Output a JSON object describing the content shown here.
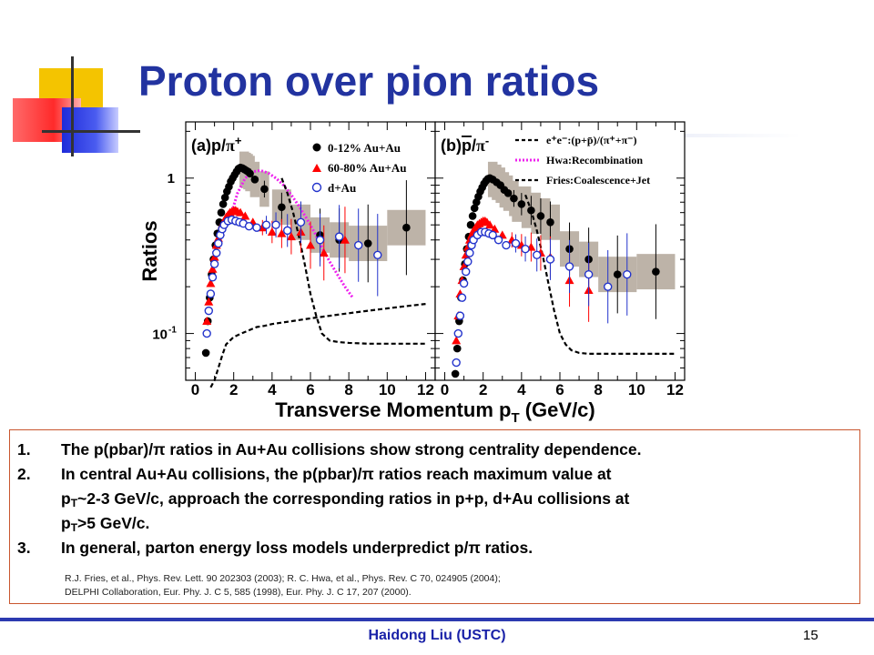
{
  "title": "Proton over pion ratios",
  "chart_data": {
    "type": "scatter",
    "xlabel": "Transverse Momentum p",
    "xlabel_sub": "T",
    "xlabel_unit": " (GeV/c)",
    "ylabel": "Ratios",
    "yscale": "log",
    "ylim": [
      0.05,
      2.3
    ],
    "xlim": [
      -0.5,
      12.5
    ],
    "x_ticks": [
      "0",
      "2",
      "4",
      "6",
      "8",
      "10",
      "12"
    ],
    "y_tick_labels": {
      "one": "1",
      "tenth_base": "10",
      "tenth_exp": "-1"
    },
    "panels": [
      {
        "label_prefix": "(a)p/",
        "label_pi": "π",
        "label_sup": "+",
        "legend": [
          "0-12% Au+Au",
          "60-80% Au+Au",
          "d+Au"
        ],
        "series": [
          {
            "name": "0-12% Au+Au",
            "color": "#000000",
            "marker": "circle-filled",
            "x": [
              0.55,
              0.65,
              0.75,
              0.85,
              0.95,
              1.05,
              1.15,
              1.25,
              1.35,
              1.45,
              1.55,
              1.65,
              1.75,
              1.85,
              1.95,
              2.05,
              2.15,
              2.25,
              2.35,
              2.45,
              2.55,
              2.65,
              2.75,
              2.85,
              3.1,
              3.6,
              4.5,
              5.5,
              6.5,
              7.5,
              9.0,
              11.0
            ],
            "y": [
              0.075,
              0.12,
              0.17,
              0.24,
              0.3,
              0.37,
              0.44,
              0.52,
              0.6,
              0.68,
              0.75,
              0.82,
              0.88,
              0.95,
              1.0,
              1.05,
              1.1,
              1.15,
              1.17,
              1.16,
              1.14,
              1.12,
              1.1,
              1.07,
              0.98,
              0.85,
              0.65,
              0.52,
              0.43,
              0.4,
              0.38,
              0.48
            ]
          },
          {
            "name": "60-80% Au+Au",
            "color": "#ff0000",
            "marker": "triangle-filled",
            "x": [
              0.6,
              0.7,
              0.8,
              0.9,
              1.0,
              1.1,
              1.2,
              1.3,
              1.4,
              1.5,
              1.6,
              1.7,
              1.8,
              1.9,
              2.0,
              2.1,
              2.2,
              2.35,
              2.6,
              3.0,
              3.5,
              4.0,
              4.5,
              5.0,
              5.5,
              6.0,
              6.7,
              7.8
            ],
            "y": [
              0.12,
              0.16,
              0.21,
              0.26,
              0.31,
              0.37,
              0.41,
              0.45,
              0.5,
              0.53,
              0.56,
              0.58,
              0.6,
              0.61,
              0.62,
              0.62,
              0.61,
              0.6,
              0.57,
              0.52,
              0.48,
              0.45,
              0.44,
              0.42,
              0.45,
              0.37,
              0.33,
              0.4
            ]
          },
          {
            "name": "d+Au",
            "color": "#2233cc",
            "marker": "circle-open",
            "x": [
              0.6,
              0.7,
              0.8,
              0.9,
              1.0,
              1.1,
              1.2,
              1.3,
              1.4,
              1.5,
              1.7,
              1.9,
              2.1,
              2.3,
              2.5,
              2.8,
              3.2,
              3.7,
              4.2,
              4.8,
              5.5,
              6.5,
              7.5,
              8.5,
              9.5
            ],
            "y": [
              0.1,
              0.14,
              0.18,
              0.23,
              0.28,
              0.33,
              0.38,
              0.43,
              0.47,
              0.5,
              0.53,
              0.54,
              0.53,
              0.52,
              0.51,
              0.49,
              0.48,
              0.5,
              0.5,
              0.46,
              0.52,
              0.4,
              0.42,
              0.37,
              0.32
            ]
          }
        ]
      },
      {
        "label_prefix": "(b)",
        "label_pbar": "p",
        "label_slash": "/",
        "label_pi": "π",
        "label_sup": "-",
        "legend": [
          "e⁺e⁻:(p+p̄)/(π⁺+π⁻)",
          "Hwa:Recombination",
          "Fries:Coalescence+Jet"
        ],
        "series": [
          {
            "name": "0-12% Au+Au",
            "color": "#000000",
            "marker": "circle-filled",
            "x": [
              0.55,
              0.65,
              0.75,
              0.85,
              0.95,
              1.05,
              1.15,
              1.25,
              1.35,
              1.45,
              1.55,
              1.65,
              1.75,
              1.85,
              1.95,
              2.05,
              2.15,
              2.25,
              2.35,
              2.5,
              2.7,
              2.9,
              3.1,
              3.3,
              3.6,
              4.0,
              4.5,
              5.0,
              5.5,
              6.5,
              7.5,
              9.0,
              11.0
            ],
            "y": [
              0.055,
              0.08,
              0.12,
              0.17,
              0.22,
              0.28,
              0.35,
              0.42,
              0.5,
              0.57,
              0.64,
              0.7,
              0.76,
              0.82,
              0.87,
              0.92,
              0.96,
              0.99,
              1.0,
              0.98,
              0.94,
              0.9,
              0.84,
              0.8,
              0.74,
              0.68,
              0.62,
              0.57,
              0.52,
              0.35,
              0.3,
              0.24,
              0.25
            ]
          },
          {
            "name": "60-80% Au+Au",
            "color": "#ff0000",
            "marker": "triangle-filled",
            "x": [
              0.6,
              0.7,
              0.8,
              0.9,
              1.0,
              1.1,
              1.2,
              1.3,
              1.4,
              1.5,
              1.6,
              1.7,
              1.8,
              1.9,
              2.0,
              2.1,
              2.2,
              2.35,
              2.6,
              3.0,
              3.5,
              4.0,
              4.5,
              5.0,
              5.5,
              6.5,
              7.5
            ],
            "y": [
              0.09,
              0.13,
              0.18,
              0.22,
              0.27,
              0.32,
              0.36,
              0.4,
              0.43,
              0.46,
              0.48,
              0.5,
              0.51,
              0.52,
              0.53,
              0.53,
              0.52,
              0.5,
              0.47,
              0.43,
              0.4,
              0.37,
              0.36,
              0.33,
              0.31,
              0.22,
              0.19
            ]
          },
          {
            "name": "d+Au",
            "color": "#2233cc",
            "marker": "circle-open",
            "x": [
              0.6,
              0.7,
              0.8,
              0.9,
              1.0,
              1.1,
              1.2,
              1.3,
              1.4,
              1.5,
              1.7,
              1.9,
              2.1,
              2.3,
              2.5,
              2.8,
              3.2,
              3.7,
              4.2,
              4.8,
              5.5,
              6.5,
              7.5,
              8.5,
              9.5
            ],
            "y": [
              0.065,
              0.1,
              0.13,
              0.17,
              0.21,
              0.25,
              0.29,
              0.33,
              0.37,
              0.4,
              0.43,
              0.45,
              0.45,
              0.44,
              0.43,
              0.4,
              0.37,
              0.38,
              0.35,
              0.32,
              0.3,
              0.27,
              0.24,
              0.2,
              0.24
            ]
          }
        ]
      }
    ],
    "curves": {
      "hwa_recombination": {
        "color": "#ee22ee",
        "x": [
          1.8,
          2.2,
          2.6,
          3.0,
          3.4,
          3.8,
          4.2,
          4.6,
          5.0,
          5.4,
          5.8,
          6.2,
          6.6,
          7.0,
          7.4,
          7.8,
          8.2
        ],
        "y": [
          0.55,
          0.8,
          1.0,
          1.1,
          1.12,
          1.08,
          1.0,
          0.9,
          0.78,
          0.66,
          0.55,
          0.45,
          0.36,
          0.29,
          0.24,
          0.2,
          0.17
        ]
      },
      "fries_a": {
        "color": "#000000",
        "x": [
          4.5,
          4.8,
          5.1,
          5.4,
          5.7,
          6.0,
          6.3,
          6.6,
          7.0,
          7.5,
          8.0,
          9.0,
          10.0,
          11.0,
          12.0
        ],
        "y": [
          1.0,
          0.8,
          0.6,
          0.42,
          0.28,
          0.18,
          0.13,
          0.1,
          0.09,
          0.088,
          0.087,
          0.086,
          0.086,
          0.086,
          0.086
        ]
      },
      "fries_b": {
        "color": "#000000",
        "x": [
          4.2,
          4.5,
          4.8,
          5.1,
          5.4,
          5.7,
          6.0,
          6.3,
          6.6,
          7.0,
          7.5,
          8.0,
          9.0,
          10.0,
          11.0,
          12.0
        ],
        "y": [
          0.78,
          0.62,
          0.46,
          0.32,
          0.21,
          0.14,
          0.1,
          0.085,
          0.078,
          0.075,
          0.074,
          0.074,
          0.074,
          0.074,
          0.074,
          0.074
        ]
      },
      "ee_a": {
        "color": "#000000",
        "x": [
          0.8,
          1.0,
          1.2,
          1.4,
          1.6,
          2.0,
          2.4,
          2.8,
          3.2,
          3.6,
          4.0,
          5.0,
          6.0,
          7.0,
          8.0,
          9.0,
          10.0,
          11.0,
          12.0
        ],
        "y": [
          0.045,
          0.05,
          0.06,
          0.072,
          0.085,
          0.095,
          0.1,
          0.105,
          0.11,
          0.112,
          0.115,
          0.12,
          0.125,
          0.13,
          0.135,
          0.14,
          0.145,
          0.15,
          0.155
        ]
      }
    }
  },
  "notes": [
    {
      "num": "1.",
      "parts": [
        "The p(pbar)/π ratios in Au+Au collisions show strong centrality dependence."
      ]
    },
    {
      "num": "2.",
      "parts": [
        "In central Au+Au collisions, the p(pbar)/π ratios reach maximum value at"
      ]
    },
    {
      "num": "",
      "line_p": "p",
      "line_sub": "T",
      "line_rest": "~2-3 GeV/c, approach the corresponding ratios in p+p, d+Au collisions at"
    },
    {
      "num": "",
      "line_p": "p",
      "line_sub": "T",
      "line_rest": ">5 GeV/c."
    },
    {
      "num": "3.",
      "parts": [
        "In general, parton energy loss models underpredict p/π ratios."
      ]
    }
  ],
  "refs": [
    "R.J. Fries, et al., Phys. Rev. Lett. 90 202303 (2003);  R. C. Hwa, et al., Phys. Rev. C 70, 024905 (2004);",
    "DELPHI Collaboration, Eur. Phy. J. C 5, 585 (1998),  Eur. Phy. J. C 17, 207 (2000)."
  ],
  "footer": {
    "author": "Haidong Liu  (USTC)",
    "page": "15"
  }
}
